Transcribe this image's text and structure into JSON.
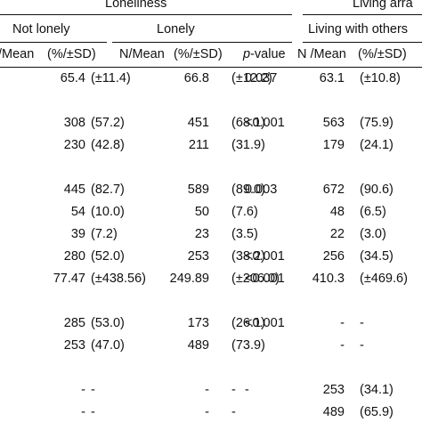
{
  "header": {
    "group1": "Loneliness",
    "group2": "Living arra",
    "sub1": "Not lonely",
    "sub2": "Lonely",
    "sub3": "Living with others",
    "cols": {
      "nmean_cut": "/Mean",
      "pct_sd": "(%/±SD)",
      "nmean": "N/Mean",
      "p_italic": "p",
      "p_rest": "-value",
      "nmean_sp": "N /Mean"
    }
  },
  "rows": [
    [
      "65.4",
      "(±11.4)",
      "66.8",
      "(±12.2)",
      "0.037",
      "63.1",
      "(±10.8)"
    ],
    [
      "308",
      "(57.2)",
      "451",
      "(68.1)",
      "<0.001",
      "563",
      "(75.9)"
    ],
    [
      "230",
      "(42.8)",
      "211",
      "(31.9)",
      "",
      "179",
      "(24.1)"
    ],
    [
      "445",
      "(82.7)",
      "589",
      "(89.0)",
      "0.003",
      "672",
      "(90.6)"
    ],
    [
      "54",
      "(10.0)",
      "50",
      "(7.6)",
      "",
      "48",
      "(6.5)"
    ],
    [
      "39",
      "(7.2)",
      "23",
      "(3.5)",
      "",
      "22",
      "(3.0)"
    ],
    [
      "280",
      "(52.0)",
      "253",
      "(38.2)",
      "<0.001",
      "256",
      "(34.5)"
    ],
    [
      "77.47",
      "(±438.56)",
      "249.89",
      "(±206.0)",
      "<0.001",
      "410.3",
      "(±469.6)"
    ],
    [
      "285",
      "(53.0)",
      "173",
      "(26.1)",
      "<0.001",
      "-",
      "-"
    ],
    [
      "253",
      "(47.0)",
      "489",
      "(73.9)",
      "",
      "-",
      "-"
    ],
    [
      "-",
      "-",
      "-",
      "-",
      "-",
      "253",
      "(34.1)"
    ],
    [
      "-",
      "-",
      "-",
      "-",
      "",
      "489",
      "(65.9)"
    ]
  ]
}
